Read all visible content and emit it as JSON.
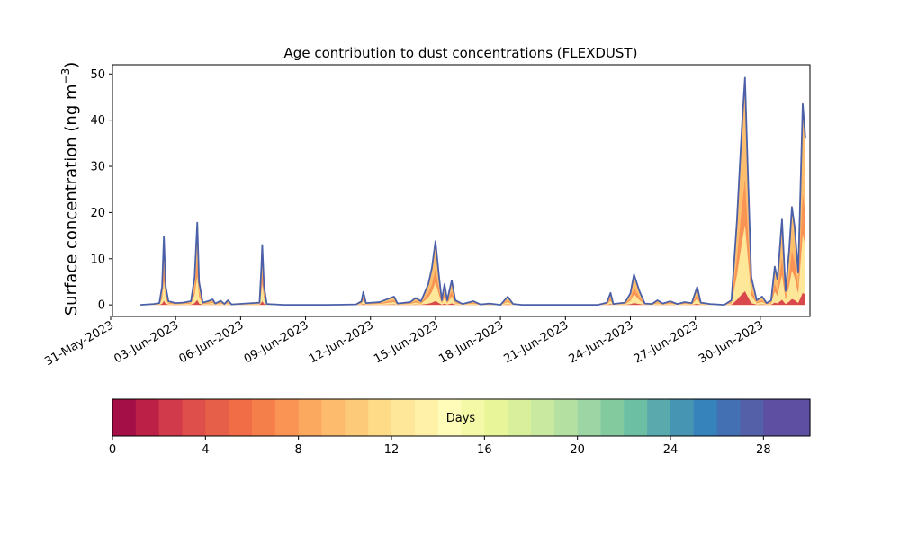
{
  "chart_data": {
    "type": "area",
    "title": "Age contribution to dust concentrations (FLEXDUST)",
    "ylabel": "Surface concentration (ng m",
    "ylabel_sup": "−3",
    "ylabel_close": ")",
    "xlabel": "",
    "ylim": [
      -2.5,
      52
    ],
    "xlim": [
      "2023-05-31T02:00",
      "2023-07-02T07:00"
    ],
    "grid": false,
    "yticks": [
      0,
      10,
      20,
      30,
      40,
      50
    ],
    "xticks": [
      {
        "date": "2023-05-31",
        "label": "31-May-2023"
      },
      {
        "date": "2023-06-03",
        "label": "03-Jun-2023"
      },
      {
        "date": "2023-06-06",
        "label": "06-Jun-2023"
      },
      {
        "date": "2023-06-09",
        "label": "09-Jun-2023"
      },
      {
        "date": "2023-06-12",
        "label": "12-Jun-2023"
      },
      {
        "date": "2023-06-15",
        "label": "15-Jun-2023"
      },
      {
        "date": "2023-06-18",
        "label": "18-Jun-2023"
      },
      {
        "date": "2023-06-21",
        "label": "21-Jun-2023"
      },
      {
        "date": "2023-06-24",
        "label": "24-Jun-2023"
      },
      {
        "date": "2023-06-27",
        "label": "27-Jun-2023"
      },
      {
        "date": "2023-06-30",
        "label": "30-Jun-2023"
      }
    ],
    "total_series": [
      [
        "2023-06-01T09:00",
        0
      ],
      [
        "2023-06-02T00:00",
        0.2
      ],
      [
        "2023-06-02T06:00",
        0.4
      ],
      [
        "2023-06-02T09:00",
        4
      ],
      [
        "2023-06-02T11:00",
        14.8
      ],
      [
        "2023-06-02T13:00",
        4
      ],
      [
        "2023-06-02T16:00",
        0.8
      ],
      [
        "2023-06-03T00:00",
        0.4
      ],
      [
        "2023-06-03T08:00",
        0.5
      ],
      [
        "2023-06-03T17:00",
        0.8
      ],
      [
        "2023-06-03T21:00",
        6
      ],
      [
        "2023-06-04T00:00",
        17.8
      ],
      [
        "2023-06-04T02:00",
        5
      ],
      [
        "2023-06-04T06:00",
        0.5
      ],
      [
        "2023-06-04T12:00",
        0.8
      ],
      [
        "2023-06-04T17:00",
        1.2
      ],
      [
        "2023-06-04T20:00",
        0.3
      ],
      [
        "2023-06-05T02:00",
        0.9
      ],
      [
        "2023-06-05T06:00",
        0.2
      ],
      [
        "2023-06-05T10:00",
        1.0
      ],
      [
        "2023-06-05T14:00",
        0.1
      ],
      [
        "2023-06-06T21:00",
        0.5
      ],
      [
        "2023-06-06T23:00",
        8
      ],
      [
        "2023-06-07T00:00",
        13
      ],
      [
        "2023-06-07T02:00",
        4
      ],
      [
        "2023-06-07T05:00",
        0.2
      ],
      [
        "2023-06-08T00:00",
        0
      ],
      [
        "2023-06-10T00:00",
        0
      ],
      [
        "2023-06-11T08:00",
        0.1
      ],
      [
        "2023-06-11T14:00",
        0.8
      ],
      [
        "2023-06-11T16:00",
        2.8
      ],
      [
        "2023-06-11T19:00",
        0.4
      ],
      [
        "2023-06-12T10:00",
        0.6
      ],
      [
        "2023-06-12T22:00",
        1.5
      ],
      [
        "2023-06-13T02:00",
        1.8
      ],
      [
        "2023-06-13T06:00",
        0.3
      ],
      [
        "2023-06-13T20:00",
        0.6
      ],
      [
        "2023-06-14T02:00",
        1.5
      ],
      [
        "2023-06-14T08:00",
        0.8
      ],
      [
        "2023-06-14T16:00",
        4.5
      ],
      [
        "2023-06-14T20:00",
        8
      ],
      [
        "2023-06-15T00:00",
        13.8
      ],
      [
        "2023-06-15T04:00",
        6
      ],
      [
        "2023-06-15T07:00",
        1.0
      ],
      [
        "2023-06-15T10:00",
        4.5
      ],
      [
        "2023-06-15T13:00",
        1.0
      ],
      [
        "2023-06-15T18:00",
        5.3
      ],
      [
        "2023-06-15T22:00",
        1.0
      ],
      [
        "2023-06-16T06:00",
        0.2
      ],
      [
        "2023-06-16T18:00",
        0.8
      ],
      [
        "2023-06-17T02:00",
        0.1
      ],
      [
        "2023-06-17T12:00",
        0.3
      ],
      [
        "2023-06-18T00:00",
        0
      ],
      [
        "2023-06-18T08:00",
        1.8
      ],
      [
        "2023-06-18T14:00",
        0.2
      ],
      [
        "2023-06-19T00:00",
        0
      ],
      [
        "2023-06-22T12:00",
        0
      ],
      [
        "2023-06-22T22:00",
        0.5
      ],
      [
        "2023-06-23T02:00",
        2.6
      ],
      [
        "2023-06-23T05:00",
        0.2
      ],
      [
        "2023-06-23T18:00",
        0.5
      ],
      [
        "2023-06-24T00:00",
        2.5
      ],
      [
        "2023-06-24T04:00",
        6.6
      ],
      [
        "2023-06-24T10:00",
        3
      ],
      [
        "2023-06-24T16:00",
        0.3
      ],
      [
        "2023-06-25T00:00",
        0.2
      ],
      [
        "2023-06-25T06:00",
        1.0
      ],
      [
        "2023-06-25T12:00",
        0.3
      ],
      [
        "2023-06-25T20:00",
        0.8
      ],
      [
        "2023-06-26T04:00",
        0.2
      ],
      [
        "2023-06-26T12:00",
        0.6
      ],
      [
        "2023-06-26T20:00",
        0.4
      ],
      [
        "2023-06-27T02:00",
        3.9
      ],
      [
        "2023-06-27T06:00",
        0.5
      ],
      [
        "2023-06-27T16:00",
        0.2
      ],
      [
        "2023-06-28T08:00",
        0
      ],
      [
        "2023-06-28T16:00",
        1.0
      ],
      [
        "2023-06-28T22:00",
        18
      ],
      [
        "2023-06-29T04:00",
        40
      ],
      [
        "2023-06-29T07:00",
        49.2
      ],
      [
        "2023-06-29T10:00",
        30
      ],
      [
        "2023-06-29T14:00",
        6
      ],
      [
        "2023-06-29T20:00",
        1.0
      ],
      [
        "2023-06-30T02:00",
        1.8
      ],
      [
        "2023-06-30T07:00",
        0.4
      ],
      [
        "2023-06-30T12:00",
        1.0
      ],
      [
        "2023-06-30T16:00",
        8.3
      ],
      [
        "2023-06-30T19:00",
        5.5
      ],
      [
        "2023-07-01T00:00",
        18.5
      ],
      [
        "2023-07-01T04:00",
        3
      ],
      [
        "2023-07-01T08:00",
        12
      ],
      [
        "2023-07-01T11:00",
        21.2
      ],
      [
        "2023-07-01T14:00",
        17
      ],
      [
        "2023-07-01T18:00",
        7
      ],
      [
        "2023-07-01T23:00",
        43.5
      ],
      [
        "2023-07-02T02:00",
        36
      ]
    ],
    "colorbar": {
      "label": "Days",
      "range": [
        0,
        30
      ],
      "ticks": [
        0,
        4,
        8,
        12,
        16,
        20,
        24,
        28
      ],
      "colors": [
        "#a40f47",
        "#bd2046",
        "#d13a4b",
        "#de4e4b",
        "#e65f48",
        "#f16d46",
        "#f57f4b",
        "#f99455",
        "#fca960",
        "#fdbb6d",
        "#fdca79",
        "#fedb87",
        "#fee799",
        "#fff1a8",
        "#fffbb8",
        "#f3f9a7",
        "#e8f599",
        "#d9ef9b",
        "#c9e8a0",
        "#b4e0a2",
        "#9ed5a4",
        "#84ca9f",
        "#6dbfa4",
        "#5aa9ac",
        "#4696b3",
        "#3682ba",
        "#4270b2",
        "#5460a8",
        "#5e4fa2",
        "#5e4fa2"
      ]
    },
    "line_color": "#4b60a8",
    "area_colors": [
      "#fdbe6e",
      "#f99455",
      "#fee799",
      "#d9494c"
    ]
  }
}
